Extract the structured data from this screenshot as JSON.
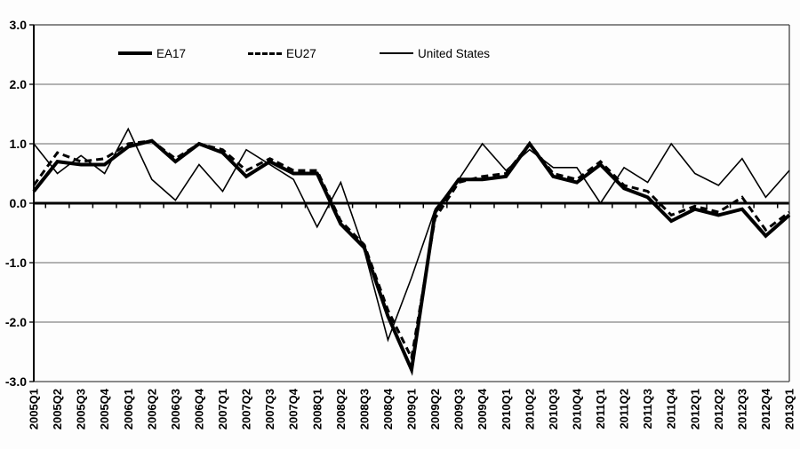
{
  "chart_data": {
    "type": "line",
    "title": "",
    "xlabel": "",
    "ylabel": "",
    "ylim": [
      -3.0,
      3.0
    ],
    "ytick_labels": [
      "3.0",
      "2.0",
      "1.0",
      "0.0",
      "-1.0",
      "-2.0",
      "-3.0"
    ],
    "ytick_values": [
      3,
      2,
      1,
      0,
      -1,
      -2,
      -3
    ],
    "grid": true,
    "legend_position": "top-inside",
    "categories": [
      "2005Q1",
      "2005Q2",
      "2005Q3",
      "2005Q4",
      "2006Q1",
      "2006Q2",
      "2006Q3",
      "2006Q4",
      "2007Q1",
      "2007Q2",
      "2007Q3",
      "2007Q4",
      "2008Q1",
      "2008Q2",
      "2008Q3",
      "2008Q4",
      "2009Q1",
      "2009Q2",
      "2009Q3",
      "2009Q4",
      "2010Q1",
      "2010Q2",
      "2010Q3",
      "2010Q4",
      "2011Q1",
      "2011Q2",
      "2011Q3",
      "2011Q4",
      "2012Q1",
      "2012Q2",
      "2012Q3",
      "2012Q4",
      "2013Q1"
    ],
    "series": [
      {
        "name": "EA17",
        "line_style": "solid-thick",
        "color": "#000000",
        "values": [
          0.2,
          0.7,
          0.65,
          0.65,
          0.95,
          1.05,
          0.7,
          1.0,
          0.85,
          0.45,
          0.7,
          0.5,
          0.5,
          -0.35,
          -0.75,
          -1.9,
          -2.8,
          -0.15,
          0.4,
          0.4,
          0.45,
          1.0,
          0.45,
          0.35,
          0.65,
          0.25,
          0.1,
          -0.3,
          -0.1,
          -0.2,
          -0.1,
          -0.55,
          -0.2
        ]
      },
      {
        "name": "EU27",
        "line_style": "dashed",
        "color": "#000000",
        "values": [
          0.3,
          0.85,
          0.7,
          0.75,
          1.0,
          1.05,
          0.75,
          1.0,
          0.9,
          0.55,
          0.75,
          0.55,
          0.55,
          -0.3,
          -0.7,
          -1.8,
          -2.6,
          -0.25,
          0.35,
          0.45,
          0.5,
          1.0,
          0.5,
          0.4,
          0.7,
          0.3,
          0.2,
          -0.2,
          -0.05,
          -0.15,
          0.1,
          -0.45,
          -0.15
        ]
      },
      {
        "name": "United States",
        "line_style": "solid-thin",
        "color": "#000000",
        "values": [
          1.0,
          0.5,
          0.8,
          0.5,
          1.25,
          0.4,
          0.05,
          0.65,
          0.2,
          0.9,
          0.65,
          0.4,
          -0.4,
          0.35,
          -0.8,
          -2.3,
          -1.25,
          -0.1,
          0.4,
          1.0,
          0.55,
          0.9,
          0.6,
          0.6,
          0.0,
          0.6,
          0.35,
          1.0,
          0.5,
          0.3,
          0.75,
          0.1,
          0.55
        ]
      }
    ]
  },
  "colors": {
    "line": "#000000",
    "grid_major": "#666666",
    "grid_outer": "#444444",
    "zero_line": "#000000",
    "background": "#fdfdfd"
  }
}
